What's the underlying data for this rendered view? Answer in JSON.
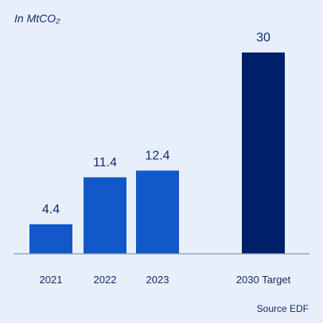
{
  "chart_data": {
    "type": "bar",
    "unit_label": "In MtCO₂",
    "categories": [
      "2021",
      "2022",
      "2023",
      "2030 Target"
    ],
    "values": [
      4.4,
      11.4,
      12.4,
      30
    ],
    "value_labels": [
      "4.4",
      "11.4",
      "12.4",
      "30"
    ],
    "colors": [
      "#1258c8",
      "#1258c8",
      "#1258c8",
      "#001f6b"
    ],
    "ylim": [
      0,
      30
    ],
    "grid": false,
    "source": "Source EDF"
  }
}
